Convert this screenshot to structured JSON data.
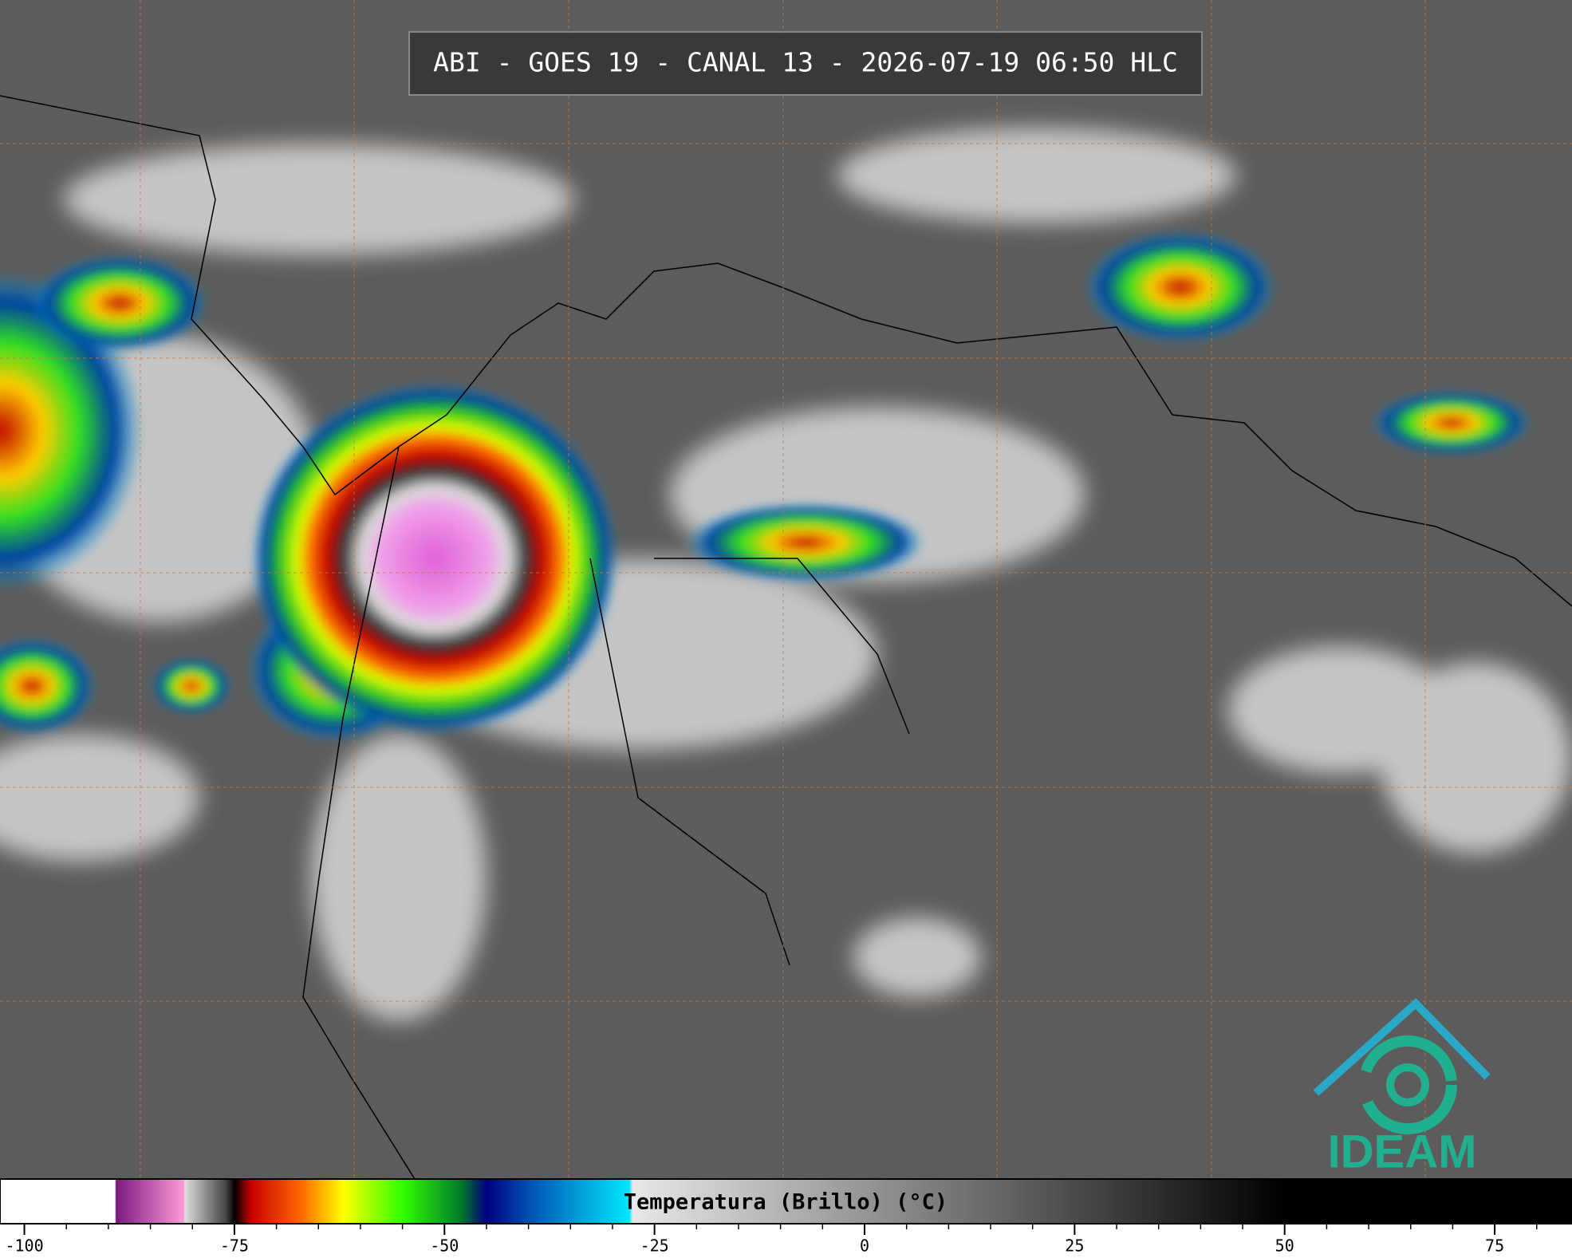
{
  "chart_data": {
    "type": "colorbar",
    "title": "ABI - GOES 19 - CANAL 13 - 2026-07-19 06:50 HLC",
    "colorbar_label": "Temperatura (Brillo) (°C)",
    "logo_text": "IDEAM",
    "xlim": [
      -102.9,
      84.2
    ],
    "xticks": [
      -100,
      -75,
      -50,
      -25,
      0,
      25,
      50,
      75
    ],
    "minor_ticks": [
      -95,
      -90,
      -85,
      -80,
      -70,
      -65,
      -60,
      -55,
      -45,
      -40,
      -35,
      -30,
      -20,
      -15,
      -10,
      -5,
      5,
      10,
      15,
      20,
      30,
      35,
      40,
      45,
      55,
      60,
      65,
      70,
      80
    ],
    "colormap": [
      {
        "value": -102.9,
        "color": "#ffffff"
      },
      {
        "value": -89.2,
        "color": "#ffffff"
      },
      {
        "value": -89.1,
        "color": "#7a1a80"
      },
      {
        "value": -81,
        "color": "#ff9ad8"
      },
      {
        "value": -80.9,
        "color": "#dddddd"
      },
      {
        "value": -76,
        "color": "#444444"
      },
      {
        "value": -75,
        "color": "#000000"
      },
      {
        "value": -73,
        "color": "#c80000"
      },
      {
        "value": -67,
        "color": "#ff6a00"
      },
      {
        "value": -62,
        "color": "#ffff00"
      },
      {
        "value": -55,
        "color": "#30ff00"
      },
      {
        "value": -48,
        "color": "#007a2a"
      },
      {
        "value": -45,
        "color": "#000080"
      },
      {
        "value": -40,
        "color": "#0050b0"
      },
      {
        "value": -28,
        "color": "#00e8ff"
      },
      {
        "value": -27.6,
        "color": "#e8e8e8"
      },
      {
        "value": 50,
        "color": "#000000"
      },
      {
        "value": 84.2,
        "color": "#000000"
      }
    ]
  }
}
